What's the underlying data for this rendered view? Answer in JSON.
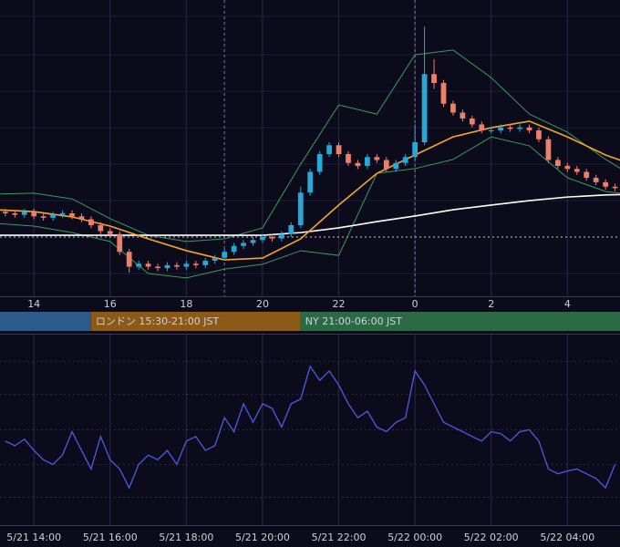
{
  "chart_data": [
    {
      "type": "candlestick",
      "xlim": [
        13.11,
        29.38
      ],
      "ylim": [
        0,
        100
      ],
      "xticks": [
        14,
        16,
        18,
        20,
        22,
        {
          "value": 24,
          "label": "0"
        },
        {
          "value": 26,
          "label": "2"
        },
        {
          "value": 28,
          "label": "4"
        }
      ],
      "ygrid": [
        94.5,
        81.5,
        69.2,
        56.9,
        44.6,
        32.3,
        7.7
      ],
      "up_color": "#29a8d6",
      "down_color": "#ee7f6b",
      "x": [
        13.25,
        13.5,
        13.75,
        14,
        14.25,
        14.5,
        14.75,
        15,
        15.25,
        15.5,
        15.75,
        16,
        16.25,
        16.5,
        16.75,
        17,
        17.25,
        17.5,
        17.75,
        18,
        18.25,
        18.5,
        18.75,
        19,
        19.25,
        19.5,
        19.75,
        20,
        20.25,
        20.5,
        20.75,
        21,
        21.25,
        21.5,
        21.75,
        22,
        22.25,
        22.5,
        22.75,
        23,
        23.25,
        23.5,
        23.75,
        24,
        24.25,
        24.5,
        24.75,
        25,
        25.25,
        25.5,
        25.75,
        26,
        26.25,
        26.5,
        26.75,
        27,
        27.25,
        27.5,
        27.75,
        28,
        28.25,
        28.5,
        28.75,
        29,
        29.25
      ],
      "open": [
        28.5,
        28,
        27.5,
        28.5,
        27,
        26.5,
        27.5,
        28,
        27,
        26,
        24,
        22,
        21,
        15,
        10,
        11,
        10,
        9.5,
        10.5,
        10,
        11,
        10.5,
        12,
        13,
        15,
        17,
        18,
        19,
        20,
        19.5,
        21,
        24,
        35,
        42,
        48,
        51,
        48,
        45,
        44,
        47,
        46,
        43,
        45,
        47,
        52,
        75,
        72,
        65,
        62,
        60,
        58,
        56,
        56,
        57,
        56.5,
        57,
        56,
        53,
        46,
        44,
        43,
        42,
        40,
        38.5,
        37
      ],
      "high": [
        29.5,
        29,
        29.5,
        29.5,
        28,
        28.5,
        29,
        29,
        28,
        27,
        25,
        23,
        22,
        16,
        12,
        12,
        11,
        11.5,
        11.5,
        12,
        12,
        13,
        14,
        16,
        18,
        19,
        20,
        21,
        21,
        22,
        25,
        37,
        43,
        49,
        52,
        52,
        49,
        46,
        48,
        48,
        47,
        46,
        48,
        58,
        91,
        80,
        73,
        66,
        63,
        61,
        59,
        57,
        58,
        58,
        58,
        58,
        57,
        54,
        47,
        45,
        44,
        43,
        41,
        39.5,
        38
      ],
      "low": [
        27,
        26.5,
        26.5,
        26,
        25.5,
        25.5,
        26.5,
        26,
        25,
        23,
        21,
        20,
        14,
        8,
        9,
        9,
        8.5,
        8.5,
        9,
        9,
        9.5,
        9.5,
        11,
        12,
        14,
        16,
        17,
        18,
        18.5,
        18.5,
        20,
        23,
        34,
        41,
        47,
        47,
        44,
        43,
        43,
        45,
        42,
        42,
        44,
        46,
        51,
        70,
        64,
        61,
        59,
        57,
        55,
        55,
        55,
        55.5,
        55.5,
        55,
        52,
        45,
        43,
        42,
        41,
        39,
        37.5,
        36,
        35.5
      ],
      "close": [
        28,
        27.5,
        28.5,
        27,
        26.5,
        27.5,
        28,
        27,
        26,
        24,
        22,
        21,
        15,
        10,
        11,
        10,
        9.5,
        10.5,
        10,
        11,
        10.5,
        12,
        13,
        15,
        17,
        18,
        19,
        20,
        19.5,
        21,
        24,
        35,
        42,
        48,
        51,
        48,
        45,
        44,
        47,
        46,
        43,
        45,
        47,
        52,
        75,
        72,
        65,
        62,
        60,
        58,
        56,
        56,
        57,
        56.5,
        57,
        56,
        53,
        46,
        44,
        43,
        42,
        40,
        38.5,
        37,
        36.5
      ],
      "overlay_x": [
        13,
        14,
        15,
        16,
        17,
        18,
        19,
        20,
        21,
        22,
        23,
        24,
        25,
        26,
        27,
        28,
        29,
        30
      ],
      "overlays": [
        {
          "color": "#3a9a5a",
          "values": [
            34.5,
            34.8,
            32.9,
            26.2,
            20.6,
            18.5,
            19.4,
            23.1,
            44.6,
            64.6,
            61.5,
            81.5,
            83.1,
            73.8,
            61.5,
            55.4,
            46.2,
            38.5
          ]
        },
        {
          "color": "#3a9a5a",
          "values": [
            24.6,
            23.7,
            21.5,
            18.5,
            7.7,
            6.2,
            9.2,
            10.8,
            15.4,
            13.8,
            41.5,
            43.1,
            46.2,
            53.8,
            50.8,
            40,
            35.4,
            33.8
          ]
        },
        {
          "color": "#ffffff",
          "values": [
            20.6,
            20.6,
            20.6,
            20.6,
            20.6,
            20.6,
            20.6,
            20.6,
            21.5,
            23.1,
            25.2,
            27.1,
            29.2,
            30.8,
            32.3,
            33.5,
            34.2,
            34.5
          ]
        },
        {
          "color": "#f5a623",
          "values": [
            29.2,
            28.6,
            26.8,
            23.7,
            19.4,
            15.4,
            12.3,
            12.9,
            19.4,
            30.8,
            41.5,
            47.7,
            53.8,
            56.9,
            59.1,
            53.8,
            47.7,
            43.1
          ]
        }
      ],
      "price_line": 20,
      "vlines": [
        19,
        24
      ],
      "sessions": [
        {
          "start": 9,
          "end": 15.5,
          "color": "#2c5a8a"
        },
        {
          "start": 15.5,
          "end": 21,
          "color": "#8a5a16",
          "label": "ロンドン 15:30-21:00 JST"
        },
        {
          "start": 21,
          "end": 30,
          "color": "#2a6a45",
          "label": "NY 21:00-06:00 JST"
        }
      ]
    },
    {
      "type": "line",
      "xlim": [
        13.11,
        29.38
      ],
      "ylim": [
        0,
        100
      ],
      "xticks": [
        {
          "value": 14,
          "label": "5/21 14:00"
        },
        {
          "value": 16,
          "label": "5/21 16:00"
        },
        {
          "value": 18,
          "label": "5/21 18:00"
        },
        {
          "value": 20,
          "label": "5/21 20:00"
        },
        {
          "value": 22,
          "label": "5/21 22:00"
        },
        {
          "value": 24,
          "label": "5/22 00:00"
        },
        {
          "value": 26,
          "label": "5/22 02:00"
        },
        {
          "value": 28,
          "label": "5/22 04:00"
        }
      ],
      "ygrid": [
        85.4,
        68.3,
        49.8,
        31.7,
        14.6
      ],
      "color": "#4a5de0",
      "x": [
        13.25,
        13.5,
        13.75,
        14,
        14.25,
        14.5,
        14.75,
        15,
        15.25,
        15.5,
        15.75,
        16,
        16.25,
        16.5,
        16.75,
        17,
        17.25,
        17.5,
        17.75,
        18,
        18.25,
        18.5,
        18.75,
        19,
        19.25,
        19.5,
        19.75,
        20,
        20.25,
        20.5,
        20.75,
        21,
        21.25,
        21.5,
        21.75,
        22,
        22.25,
        22.5,
        22.75,
        23,
        23.25,
        23.5,
        23.75,
        24,
        24.25,
        24.5,
        24.75,
        25,
        25.25,
        25.5,
        25.75,
        26,
        26.25,
        26.5,
        26.75,
        27,
        27.25,
        27.5,
        27.75,
        28,
        28.25,
        28.5,
        28.75,
        29,
        29.25
      ],
      "values": [
        43.9,
        41.5,
        44.9,
        39,
        34.1,
        31.7,
        36.6,
        48.8,
        39,
        29.3,
        46.3,
        34.1,
        29.3,
        19.5,
        31.7,
        36.6,
        34.1,
        39,
        31.7,
        43.9,
        46.3,
        39,
        41.5,
        56.1,
        48.8,
        63.4,
        53.7,
        63.4,
        61,
        51.2,
        63.4,
        65.9,
        82.9,
        75.6,
        80.5,
        73.2,
        63.4,
        56.1,
        59.5,
        51.2,
        48.8,
        53.7,
        56.1,
        80.5,
        73.2,
        63.4,
        53.7,
        51.2,
        48.8,
        46.3,
        43.9,
        48.8,
        47.8,
        43.9,
        48.8,
        49.8,
        43.9,
        29.3,
        26.8,
        28.3,
        29.3,
        26.8,
        24.4,
        19.5,
        31.7
      ]
    }
  ]
}
